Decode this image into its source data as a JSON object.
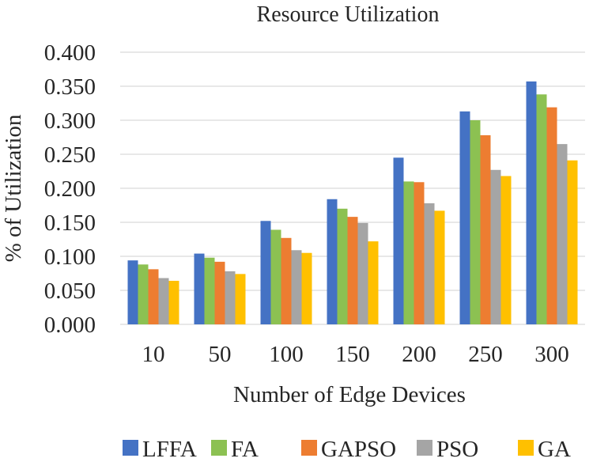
{
  "chart_data": {
    "type": "bar",
    "title": "Resource Utilization",
    "xlabel": "Number of Edge Devices",
    "ylabel": "% of  Utilization",
    "categories": [
      "10",
      "50",
      "100",
      "150",
      "200",
      "250",
      "300"
    ],
    "ylim": [
      0,
      0.4
    ],
    "yticks": [
      "0.000",
      "0.050",
      "0.100",
      "0.150",
      "0.200",
      "0.250",
      "0.300",
      "0.350",
      "0.400"
    ],
    "grid": true,
    "legend_position": "bottom",
    "series": [
      {
        "name": "LFFA",
        "color": "#4472c4",
        "values": [
          0.094,
          0.104,
          0.152,
          0.184,
          0.245,
          0.313,
          0.357
        ]
      },
      {
        "name": "FA",
        "color": "#8cc152",
        "values": [
          0.088,
          0.098,
          0.139,
          0.17,
          0.21,
          0.3,
          0.338
        ]
      },
      {
        "name": "GAPSO",
        "color": "#ed7d31",
        "values": [
          0.081,
          0.092,
          0.127,
          0.158,
          0.209,
          0.278,
          0.319
        ]
      },
      {
        "name": "PSO",
        "color": "#a5a5a5",
        "values": [
          0.068,
          0.078,
          0.109,
          0.149,
          0.178,
          0.227,
          0.265
        ]
      },
      {
        "name": "GA",
        "color": "#ffc000",
        "values": [
          0.064,
          0.074,
          0.105,
          0.122,
          0.167,
          0.218,
          0.241
        ]
      }
    ]
  }
}
